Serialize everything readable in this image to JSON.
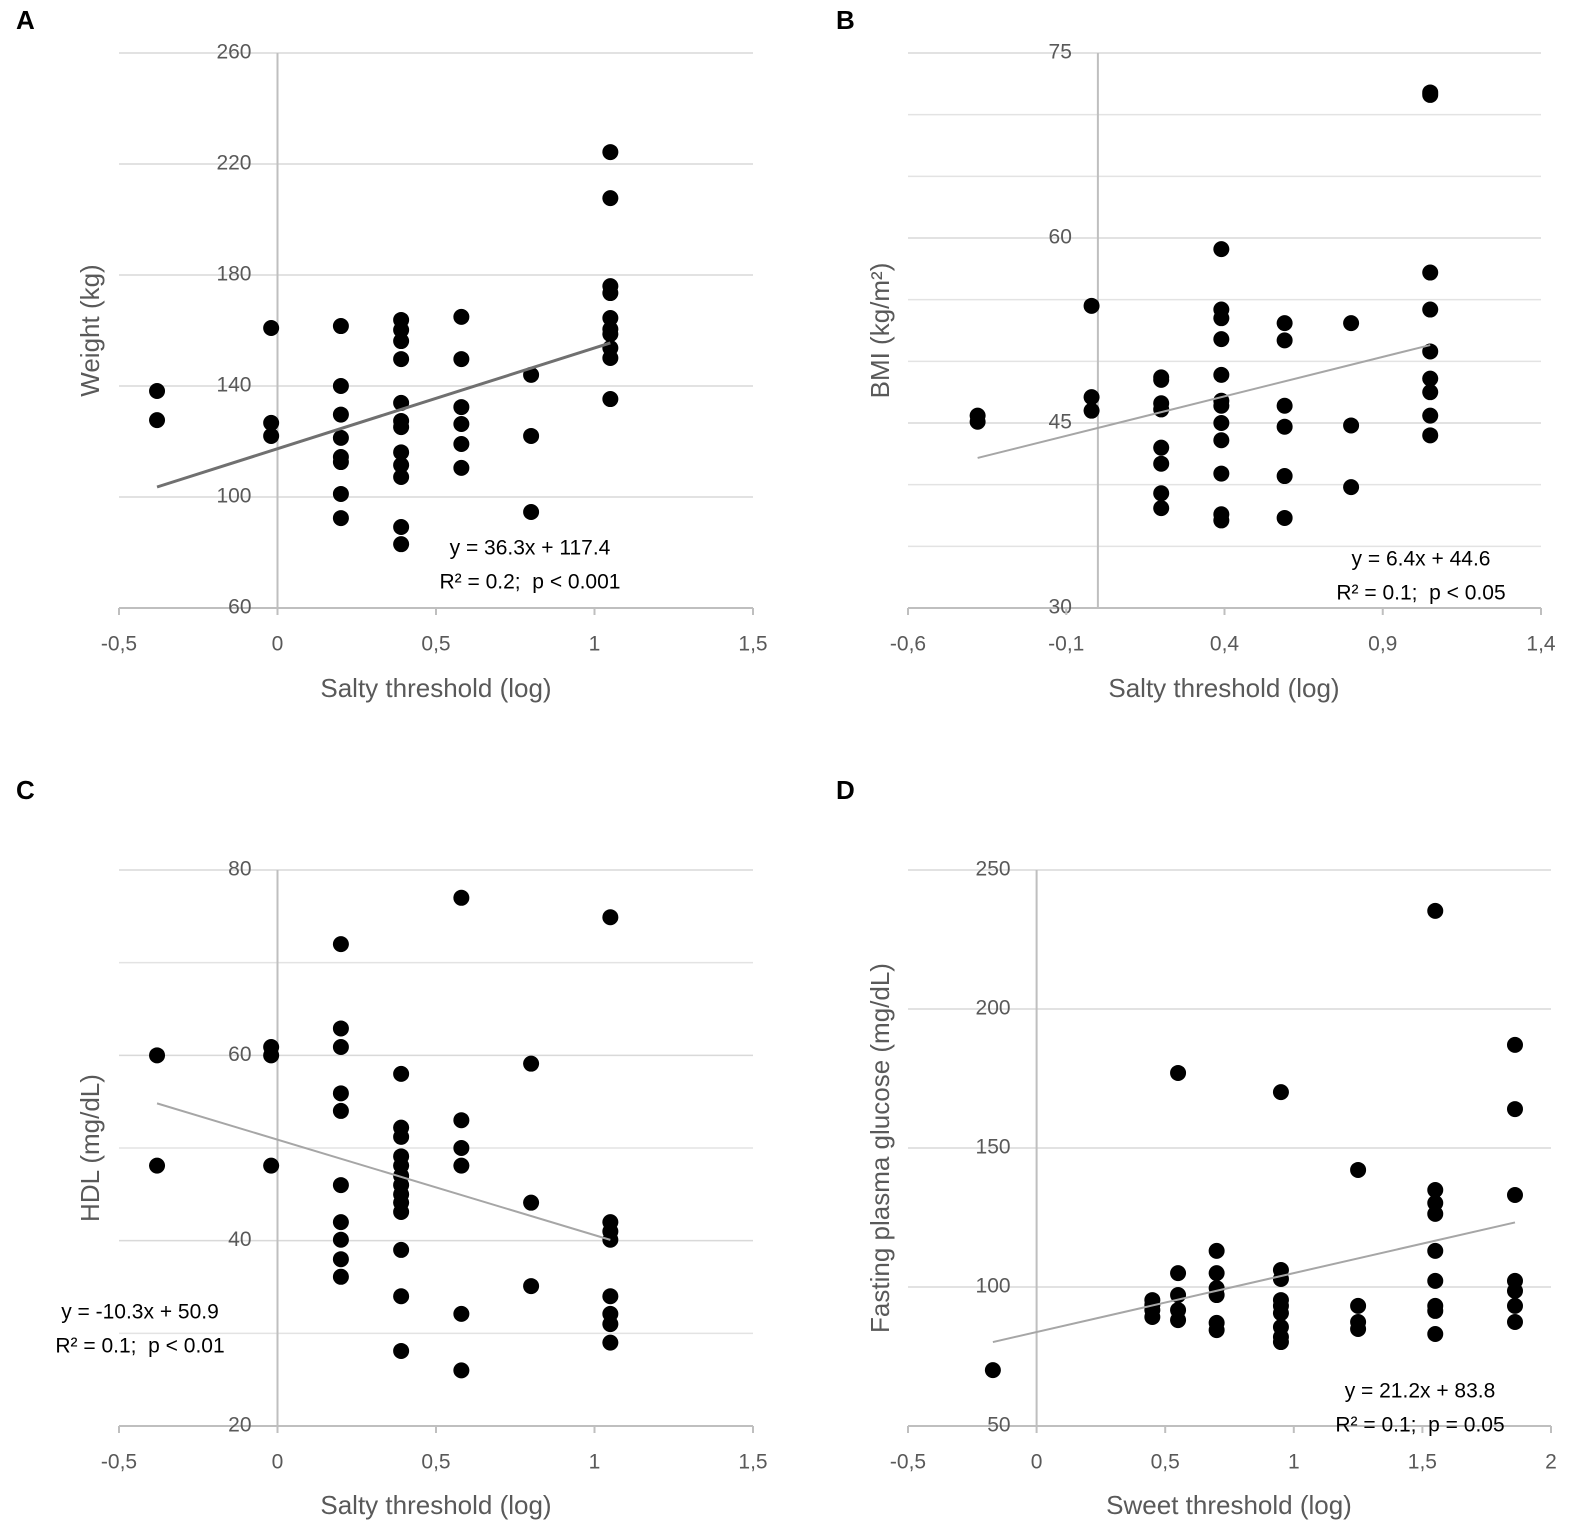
{
  "chart_data": [
    {
      "type": "scatter",
      "panel_label": "A",
      "xlabel": "Salty threshold (log)",
      "ylabel": "Weight (kg)",
      "xlim": [
        -0.5,
        1.5
      ],
      "ylim": [
        60,
        260
      ],
      "xticks": [
        {
          "value": -0.5,
          "label": "-0,5"
        },
        0,
        {
          "value": 0.5,
          "label": "0,5"
        },
        1,
        {
          "value": 1.5,
          "label": "1,5"
        }
      ],
      "yticks": [
        60,
        100,
        140,
        180,
        220,
        260
      ],
      "grid": true,
      "color": "#000000",
      "x": [
        -0.38,
        -0.38,
        -0.02,
        -0.02,
        -0.02,
        0.2,
        0.2,
        0.2,
        0.2,
        0.2,
        0.2,
        0.2,
        0.2,
        0.39,
        0.39,
        0.39,
        0.39,
        0.39,
        0.39,
        0.39,
        0.39,
        0.39,
        0.39,
        0.39,
        0.39,
        0.58,
        0.58,
        0.58,
        0.58,
        0.58,
        0.58,
        0.8,
        0.8,
        0.8,
        1.05,
        1.05,
        1.05,
        1.05,
        1.05,
        1.05,
        1.05,
        1.05,
        1.05,
        1.05
      ],
      "y": [
        138.2,
        127.7,
        160.9,
        126.7,
        122,
        161.6,
        140,
        129.7,
        121.3,
        114.4,
        112.6,
        101.1,
        92.4,
        163.8,
        160.2,
        156.2,
        149.7,
        133.9,
        127.4,
        125.2,
        116.1,
        111.5,
        107.2,
        89.2,
        83,
        164.9,
        149.7,
        132.4,
        126.3,
        119.1,
        110.5,
        144,
        122,
        94.6,
        224.3,
        207.7,
        176,
        173.5,
        164.5,
        160.5,
        158.7,
        153.7,
        150.1,
        135.3
      ],
      "trendline": {
        "slope": 36.3,
        "intercept": 117.4,
        "x_range": [
          -0.38,
          1.05
        ],
        "color": "#707070"
      },
      "annotations": [
        "y = 36.3x + 117.4",
        "R² = 0.2;  p < 0.001"
      ]
    },
    {
      "type": "scatter",
      "panel_label": "B",
      "xlabel": "Salty threshold (log)",
      "ylabel": "BMI (kg/m²)",
      "xlim": [
        -0.6,
        1.4
      ],
      "ylim": [
        30,
        75
      ],
      "xticks": [
        {
          "value": -0.6,
          "label": "-0,6"
        },
        {
          "value": -0.1,
          "label": "-0,1"
        },
        {
          "value": 0.4,
          "label": "0,4"
        },
        {
          "value": 0.9,
          "label": "0,9"
        },
        {
          "value": 1.4,
          "label": "1,4"
        }
      ],
      "yticks": [
        30,
        45,
        60,
        75
      ],
      "minor_grid": [
        35,
        40,
        50,
        55,
        65,
        70
      ],
      "grid": true,
      "color": "#000000",
      "x": [
        -0.38,
        -0.38,
        -0.02,
        -0.02,
        -0.02,
        0.2,
        0.2,
        0.2,
        0.2,
        0.2,
        0.2,
        0.2,
        0.2,
        0.39,
        0.39,
        0.39,
        0.39,
        0.39,
        0.39,
        0.39,
        0.39,
        0.39,
        0.39,
        0.39,
        0.39,
        0.59,
        0.59,
        0.59,
        0.59,
        0.59,
        0.59,
        0.8,
        0.8,
        0.8,
        1.05,
        1.05,
        1.05,
        1.05,
        1.05,
        1.05,
        1.05,
        1.05,
        1.05
      ],
      "y": [
        45.6,
        45.1,
        54.5,
        47.1,
        46.0,
        48.7,
        48.5,
        46.6,
        46.1,
        43.0,
        41.7,
        39.3,
        38.1,
        59.1,
        54.2,
        53.5,
        51.8,
        48.9,
        46.8,
        46.4,
        45.0,
        43.6,
        40.9,
        37.6,
        37.1,
        53.1,
        51.7,
        46.4,
        44.7,
        40.7,
        37.3,
        53.1,
        44.8,
        39.8,
        71.8,
        71.6,
        57.2,
        54.2,
        50.8,
        48.6,
        47.5,
        45.6,
        44.0
      ],
      "trendline": {
        "slope": 6.4,
        "intercept": 44.6,
        "x_range": [
          -0.38,
          1.05
        ],
        "color": "#a6a6a6"
      },
      "annotations": [
        "y = 6.4x + 44.6",
        "R² = 0.1;  p < 0.05"
      ]
    },
    {
      "type": "scatter",
      "panel_label": "C",
      "xlabel": "Salty threshold (log)",
      "ylabel": "HDL (mg/dL)",
      "xlim": [
        -0.5,
        1.5
      ],
      "ylim": [
        20,
        80
      ],
      "xticks": [
        {
          "value": -0.5,
          "label": "-0,5"
        },
        0,
        {
          "value": 0.5,
          "label": "0,5"
        },
        1,
        {
          "value": 1.5,
          "label": "1,5"
        }
      ],
      "yticks": [
        20,
        40,
        60,
        80
      ],
      "minor_grid": [
        30,
        50,
        70
      ],
      "grid": true,
      "color": "#000000",
      "x": [
        -0.38,
        -0.38,
        -0.02,
        -0.02,
        -0.02,
        0.2,
        0.2,
        0.2,
        0.2,
        0.2,
        0.2,
        0.2,
        0.2,
        0.2,
        0.2,
        0.39,
        0.39,
        0.39,
        0.39,
        0.39,
        0.39,
        0.39,
        0.39,
        0.39,
        0.39,
        0.39,
        0.39,
        0.39,
        0.58,
        0.58,
        0.58,
        0.58,
        0.58,
        0.58,
        0.8,
        0.8,
        0.8,
        1.05,
        1.05,
        1.05,
        1.05,
        1.05,
        1.05,
        1.05,
        1.05
      ],
      "y": [
        60,
        48.1,
        60.9,
        60,
        48.1,
        72,
        62.9,
        60.9,
        55.9,
        54,
        46,
        42,
        40.1,
        38,
        36.1,
        58,
        52.2,
        51.2,
        49.1,
        48.1,
        47,
        46,
        45,
        44.1,
        43.1,
        39,
        34,
        28.1,
        77,
        53,
        50,
        48.1,
        32.1,
        26,
        59.1,
        44.1,
        35.1,
        74.9,
        42,
        41,
        40.1,
        34,
        32.1,
        31,
        29
      ],
      "trendline": {
        "slope": -10.3,
        "intercept": 50.9,
        "x_range": [
          -0.38,
          1.05
        ],
        "color": "#a6a6a6"
      },
      "annotations": [
        "y = -10.3x + 50.9",
        "R² = 0.1;  p < 0.01"
      ]
    },
    {
      "type": "scatter",
      "panel_label": "D",
      "xlabel": "Sweet threshold (log)",
      "ylabel": "Fasting plasma glucose (mg/dL)",
      "xlim": [
        -0.5,
        2
      ],
      "ylim": [
        50,
        250
      ],
      "xticks": [
        {
          "value": -0.5,
          "label": "-0,5"
        },
        0,
        {
          "value": 0.5,
          "label": "0,5"
        },
        1,
        {
          "value": 1.5,
          "label": "1,5"
        },
        2
      ],
      "yticks": [
        50,
        100,
        150,
        200,
        250
      ],
      "grid": true,
      "color": "#000000",
      "x": [
        -0.17,
        0.45,
        0.45,
        0.45,
        0.45,
        0.55,
        0.55,
        0.55,
        0.55,
        0.55,
        0.7,
        0.7,
        0.7,
        0.7,
        0.7,
        0.7,
        0.95,
        0.95,
        0.95,
        0.95,
        0.95,
        0.95,
        0.95,
        0.95,
        0.95,
        1.25,
        1.25,
        1.25,
        1.25,
        1.55,
        1.55,
        1.55,
        1.55,
        1.55,
        1.55,
        1.55,
        1.55,
        1.55,
        1.86,
        1.86,
        1.86,
        1.86,
        1.86,
        1.86,
        1.86
      ],
      "y": [
        70.1,
        95.3,
        93.5,
        91.7,
        89.2,
        177,
        105,
        97.1,
        91.7,
        88.1,
        113,
        105,
        99.6,
        97.1,
        87.1,
        84.5,
        170.1,
        106.1,
        102.9,
        95.3,
        93.2,
        90.6,
        85.6,
        82,
        80.2,
        142.1,
        93.2,
        87.4,
        84.9,
        235.3,
        134.9,
        130.2,
        126.3,
        113,
        102.2,
        93.2,
        91.4,
        83.1,
        187.1,
        164,
        133.1,
        102.2,
        98.6,
        93.2,
        87.4
      ],
      "trendline": {
        "slope": 21.2,
        "intercept": 83.8,
        "x_range": [
          -0.17,
          1.86
        ],
        "color": "#a6a6a6"
      },
      "annotations": [
        "y = 21.2x + 83.8",
        "R² = 0.1;  p = 0.05"
      ]
    }
  ]
}
